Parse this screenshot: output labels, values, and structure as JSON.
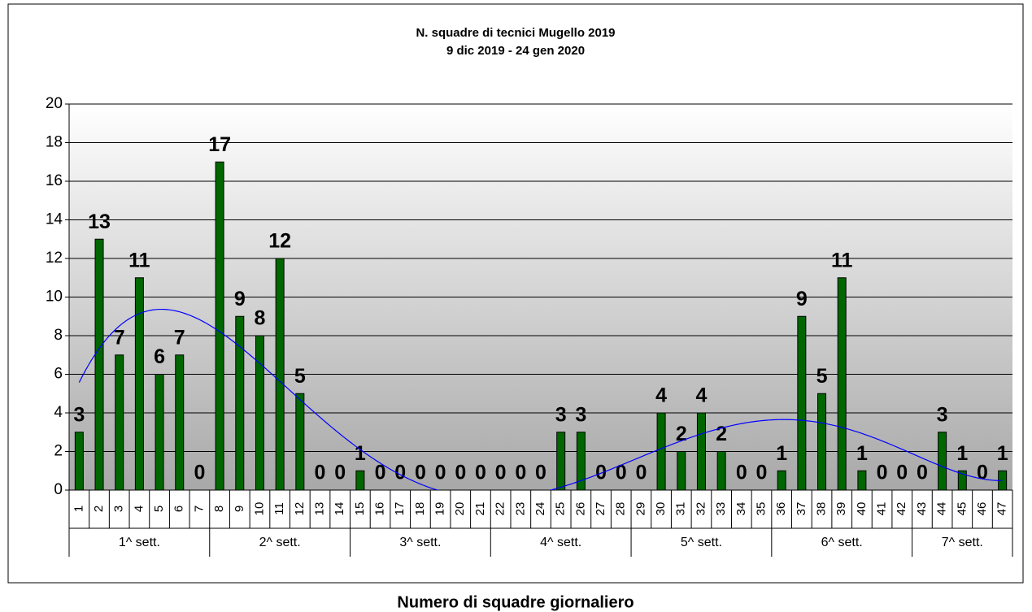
{
  "chart_data": {
    "type": "bar",
    "title": "N. squadre di tecnici Mugello 2019",
    "subtitle": "9 dic 2019 - 24 gen 2020",
    "x_label": "Numero di squadre giornaliero",
    "categories": [
      "1",
      "2",
      "3",
      "4",
      "5",
      "6",
      "7",
      "8",
      "9",
      "10",
      "11",
      "12",
      "13",
      "14",
      "15",
      "16",
      "17",
      "18",
      "19",
      "20",
      "21",
      "22",
      "23",
      "24",
      "25",
      "26",
      "27",
      "28",
      "29",
      "30",
      "31",
      "32",
      "33",
      "34",
      "35",
      "36",
      "37",
      "38",
      "39",
      "40",
      "41",
      "42",
      "43",
      "44",
      "45",
      "46",
      "47"
    ],
    "values": [
      3,
      13,
      7,
      11,
      6,
      7,
      0,
      17,
      9,
      8,
      12,
      5,
      0,
      0,
      1,
      0,
      0,
      0,
      0,
      0,
      0,
      0,
      0,
      0,
      3,
      3,
      0,
      0,
      0,
      4,
      2,
      4,
      2,
      0,
      0,
      1,
      9,
      5,
      11,
      1,
      0,
      0,
      0,
      3,
      1,
      0,
      1
    ],
    "groups": [
      "1^ sett.",
      "2^ sett.",
      "3^ sett.",
      "4^ sett.",
      "5^ sett.",
      "6^ sett.",
      "7^ sett."
    ],
    "group_size": 7,
    "color": "#006600",
    "trendline": {
      "type": "polynomial",
      "order": 6,
      "color": "#0000ff"
    },
    "ylim": [
      0,
      20
    ],
    "yticks": [
      0,
      2,
      4,
      6,
      8,
      10,
      12,
      14,
      16,
      18,
      20
    ],
    "grid": true
  }
}
